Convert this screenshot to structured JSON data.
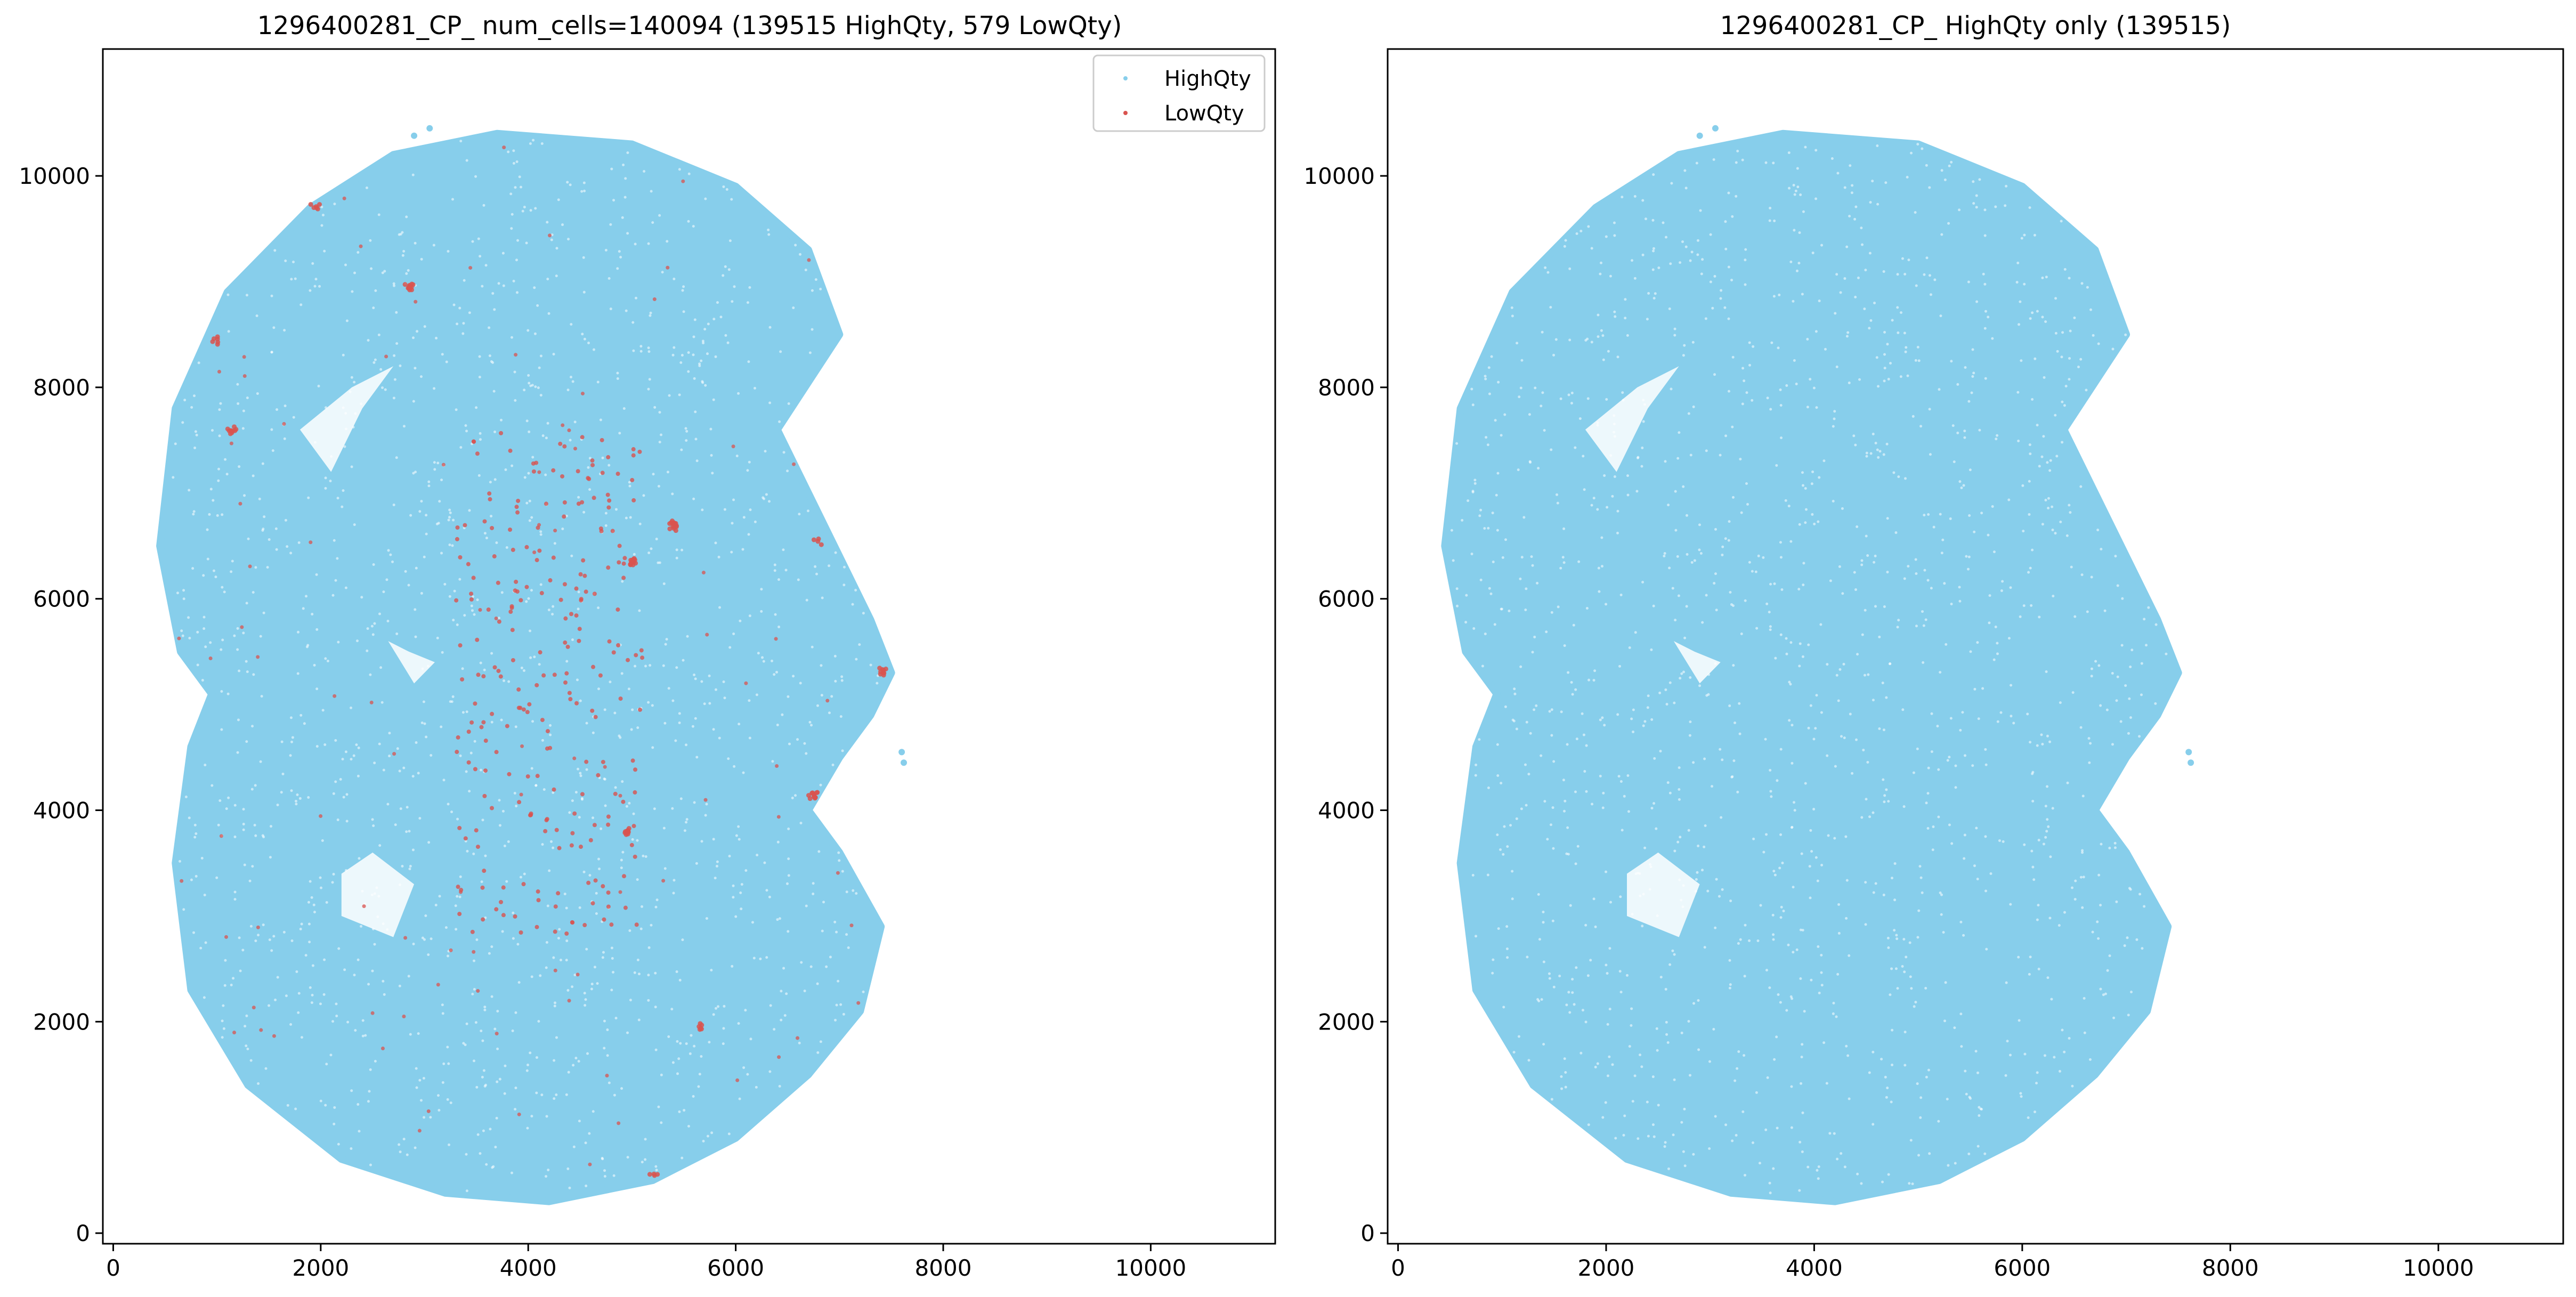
{
  "chart_data": [
    {
      "type": "scatter",
      "title": "1296400281_CP_ num_cells=140094 (139515 HighQty, 579 LowQty)",
      "xlabel": "",
      "ylabel": "",
      "xlim": [
        -100,
        11200
      ],
      "ylim": [
        -100,
        11200
      ],
      "xticks": [
        0,
        2000,
        4000,
        6000,
        8000,
        10000
      ],
      "yticks": [
        0,
        2000,
        4000,
        6000,
        8000,
        10000
      ],
      "xtick_labels": [
        "0",
        "2000",
        "4000",
        "6000",
        "8000",
        "10000"
      ],
      "ytick_labels": [
        "0",
        "2000",
        "4000",
        "6000",
        "8000",
        "10000"
      ],
      "grid": false,
      "legend": {
        "placement": "top-right",
        "entries": [
          {
            "label": "HighQty",
            "color": "#87ceeb"
          },
          {
            "label": "LowQty",
            "color": "#d9534f"
          }
        ]
      },
      "series": [
        {
          "name": "HighQty",
          "color": "#87ceeb",
          "count": 139515,
          "region_outline": [
            [
              4200,
              300
            ],
            [
              5200,
              500
            ],
            [
              6000,
              900
            ],
            [
              6700,
              1500
            ],
            [
              7200,
              2100
            ],
            [
              7400,
              2900
            ],
            [
              7000,
              3600
            ],
            [
              6700,
              4000
            ],
            [
              7000,
              4500
            ],
            [
              7300,
              4900
            ],
            [
              7500,
              5300
            ],
            [
              7300,
              5800
            ],
            [
              7000,
              6400
            ],
            [
              6700,
              7000
            ],
            [
              6400,
              7600
            ],
            [
              7000,
              8500
            ],
            [
              6700,
              9300
            ],
            [
              6000,
              9900
            ],
            [
              5000,
              10300
            ],
            [
              3700,
              10400
            ],
            [
              2700,
              10200
            ],
            [
              1900,
              9700
            ],
            [
              1100,
              8900
            ],
            [
              600,
              7800
            ],
            [
              450,
              6500
            ],
            [
              650,
              5500
            ],
            [
              950,
              5100
            ],
            [
              750,
              4600
            ],
            [
              600,
              3500
            ],
            [
              750,
              2300
            ],
            [
              1300,
              1400
            ],
            [
              2200,
              700
            ],
            [
              3200,
              380
            ]
          ],
          "void_regions": [
            [
              [
                2650,
                5600
              ],
              [
                2900,
                5200
              ],
              [
                3100,
                5400
              ],
              [
                2850,
                5500
              ]
            ],
            [
              [
                1800,
                7600
              ],
              [
                2300,
                8000
              ],
              [
                2700,
                8200
              ],
              [
                2400,
                7800
              ],
              [
                2100,
                7200
              ]
            ],
            [
              [
                2200,
                3000
              ],
              [
                2700,
                2800
              ],
              [
                2900,
                3300
              ],
              [
                2500,
                3600
              ],
              [
                2200,
                3400
              ]
            ]
          ],
          "outlier_points": [
            [
              7600,
              4550
            ],
            [
              7620,
              4450
            ],
            [
              7450,
              5350
            ],
            [
              3050,
              10450
            ],
            [
              2900,
              10380
            ]
          ]
        },
        {
          "name": "LowQty",
          "color": "#d9534f",
          "count": 579,
          "clusters": [
            {
              "center": [
                2850,
                8950
              ],
              "n": 12
            },
            {
              "center": [
                1150,
                7600
              ],
              "n": 10
            },
            {
              "center": [
                1000,
                8450
              ],
              "n": 6
            },
            {
              "center": [
                1950,
                9700
              ],
              "n": 6
            },
            {
              "center": [
                5400,
                6700
              ],
              "n": 14
            },
            {
              "center": [
                5000,
                6350
              ],
              "n": 14
            },
            {
              "center": [
                6750,
                4150
              ],
              "n": 12
            },
            {
              "center": [
                4950,
                3800
              ],
              "n": 10
            },
            {
              "center": [
                7420,
                5320
              ],
              "n": 10
            },
            {
              "center": [
                5650,
                1950
              ],
              "n": 6
            },
            {
              "center": [
                5200,
                550
              ],
              "n": 4
            },
            {
              "center": [
                6800,
                6550
              ],
              "n": 4
            }
          ],
          "diffuse_region": [
            3300,
            5100,
            2800,
            7600
          ]
        }
      ]
    },
    {
      "type": "scatter",
      "title": "1296400281_CP_ HighQty only (139515)",
      "xlabel": "",
      "ylabel": "",
      "xlim": [
        -100,
        11200
      ],
      "ylim": [
        -100,
        11200
      ],
      "xticks": [
        0,
        2000,
        4000,
        6000,
        8000,
        10000
      ],
      "yticks": [
        0,
        2000,
        4000,
        6000,
        8000,
        10000
      ],
      "xtick_labels": [
        "0",
        "2000",
        "4000",
        "6000",
        "8000",
        "10000"
      ],
      "ytick_labels": [
        "0",
        "2000",
        "4000",
        "6000",
        "8000",
        "10000"
      ],
      "grid": false,
      "series": [
        {
          "name": "HighQty",
          "color": "#87ceeb",
          "count": 139515
        }
      ]
    }
  ]
}
